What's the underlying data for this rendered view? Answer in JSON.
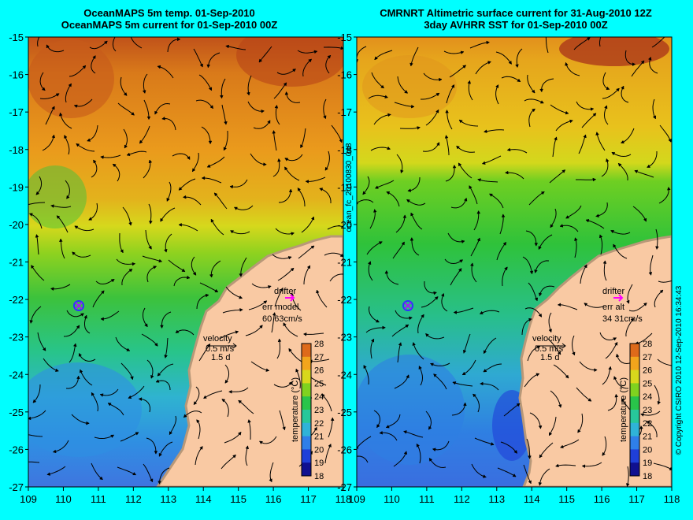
{
  "panels": [
    {
      "id": "left",
      "title_line1": "OceanMAPS 5m temp. 01-Sep-2010",
      "title_line2": "OceanMAPS 5m current for 01-Sep-2010 00Z",
      "drifter_label": "drifter",
      "err_label": "err model",
      "err_values": "60 63cm/s",
      "velocity_label": "velocity",
      "velocity_scale": "0.5 m/s",
      "velocity_time": "1.5 d"
    },
    {
      "id": "right",
      "title_line1": "CMRNRT Altimetric surface current for 31-Aug-2010 12Z",
      "title_line2": "3day AVHRR SST for 01-Sep-2010 00Z",
      "drifter_label": "drifter",
      "err_label": "err alt",
      "err_values": "34 31cm/s",
      "velocity_label": "velocity",
      "velocity_scale": "0.5 m/s",
      "velocity_time": "1.5 d"
    }
  ],
  "axes": {
    "lon_ticks": [
      "109",
      "110",
      "111",
      "112",
      "113",
      "114",
      "115",
      "116",
      "117",
      "118"
    ],
    "lat_ticks": [
      "-15",
      "-16",
      "-17",
      "-18",
      "-19",
      "-20",
      "-21",
      "-22",
      "-23",
      "-24",
      "-25",
      "-26",
      "-27"
    ],
    "lon_range": [
      109,
      118
    ],
    "lat_range": [
      -27,
      -15
    ]
  },
  "colorbar": {
    "label": "temperature (°C)",
    "ticks": [
      "18",
      "19",
      "20",
      "21",
      "22",
      "23",
      "24",
      "25",
      "26",
      "27",
      "28"
    ],
    "colors": [
      "#101090",
      "#1f3fd8",
      "#2f7fe8",
      "#2fb3d8",
      "#27c79a",
      "#29c44a",
      "#7fd21f",
      "#d8d81c",
      "#f2a51c",
      "#de6a1a",
      "#b83a16"
    ]
  },
  "side_labels": {
    "middle": "ocean_fc_20100830_048",
    "right": "© Copyright CSIRO 2010   12-Sep-2010 16:34:43"
  },
  "colors": {
    "background": "#00ffff",
    "land": "#f9c9a3",
    "coast": "#b89878",
    "drifter": "#ff00ff"
  }
}
